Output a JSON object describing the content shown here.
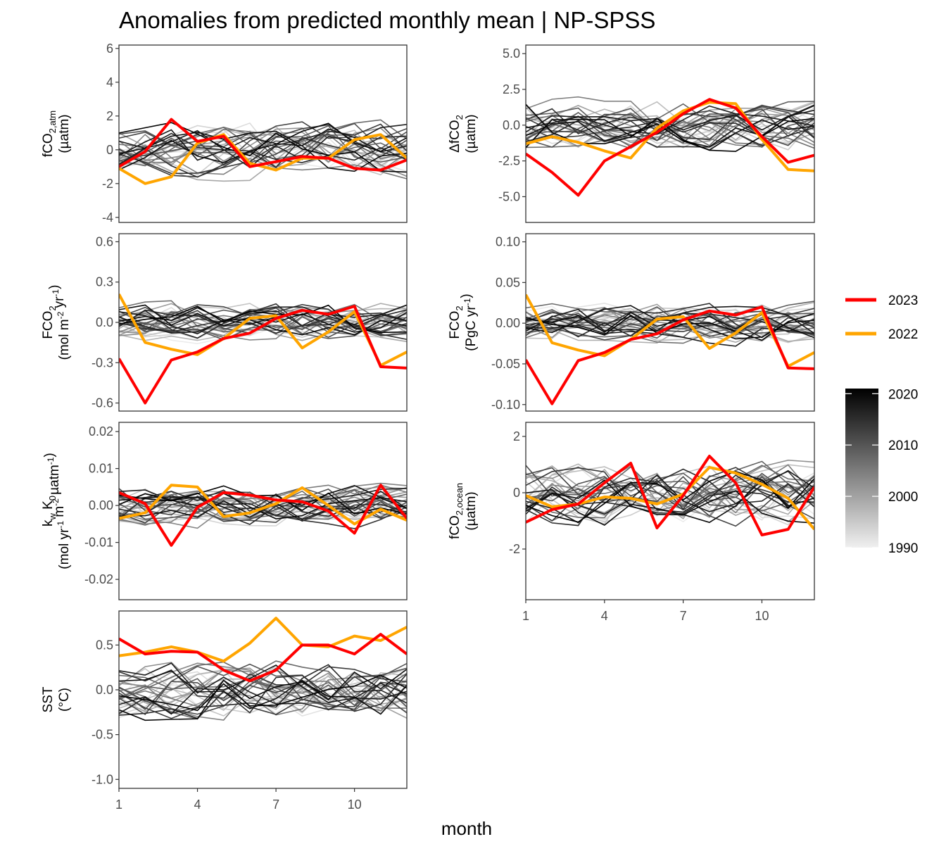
{
  "title": "Anomalies from predicted monthly mean | NP-SPSS",
  "chart_data": {
    "type": "line",
    "xlabel": "month",
    "x": [
      1,
      2,
      3,
      4,
      5,
      6,
      7,
      8,
      9,
      10,
      11,
      12
    ],
    "x_ticks": [
      "1",
      "4",
      "7",
      "10"
    ],
    "legend": {
      "highlight_series": [
        {
          "name": "2023",
          "color": "#ff0000"
        },
        {
          "name": "2022",
          "color": "#ffa500"
        }
      ],
      "year_gradient": {
        "ticks": [
          "2020",
          "2010",
          "2000",
          "1990"
        ],
        "range": [
          1990,
          2021
        ]
      }
    },
    "panels": [
      {
        "id": "fco2-atm",
        "ylabel": {
          "line1_base": "fCO",
          "line1_sub": "2,atm",
          "line2": "(µatm)"
        },
        "ylim": [
          -4.3,
          6.2
        ],
        "yticks": [
          6,
          4,
          2,
          0,
          -2,
          -4
        ],
        "ytick_labels": [
          "6",
          "4",
          "2",
          "0",
          "-2",
          "-4"
        ],
        "series": [
          {
            "name": "2023",
            "values": [
              -1.0,
              -0.1,
              1.8,
              0.5,
              0.8,
              -1.0,
              -0.7,
              -0.4,
              -0.5,
              -1.1,
              -1.2,
              -0.6
            ]
          },
          {
            "name": "2022",
            "values": [
              -1.1,
              -2.0,
              -1.6,
              0.4,
              0.9,
              -0.8,
              -1.2,
              -0.5,
              -0.5,
              0.6,
              0.9,
              -0.5
            ]
          }
        ],
        "background": {
          "seed": 11,
          "amplitude": 2.0
        }
      },
      {
        "id": "delta-fco2",
        "ylabel": {
          "line1_base": "ΔfCO",
          "line1_sub": "2",
          "line2": "(µatm)"
        },
        "ylim": [
          -6.8,
          5.6
        ],
        "yticks": [
          5.0,
          2.5,
          0.0,
          -2.5,
          -5.0
        ],
        "ytick_labels": [
          "5.0",
          "2.5",
          "0.0",
          "-2.5",
          "-5.0"
        ],
        "series": [
          {
            "name": "2023",
            "values": [
              -2.0,
              -3.3,
              -4.9,
              -2.5,
              -1.5,
              -0.5,
              0.8,
              1.8,
              1.2,
              -0.8,
              -2.6,
              -2.1
            ]
          },
          {
            "name": "2022",
            "values": [
              -1.3,
              -0.8,
              -1.2,
              -1.8,
              -2.3,
              -0.2,
              1.0,
              1.6,
              1.5,
              -1.0,
              -3.1,
              -3.2
            ]
          }
        ],
        "background": {
          "seed": 23,
          "amplitude": 2.2
        }
      },
      {
        "id": "fco2-flux-area",
        "ylabel": {
          "line1_base": "FCO",
          "line1_sub": "2",
          "line2": "(mol m-2 yr-1)"
        },
        "ylim": [
          -0.66,
          0.66
        ],
        "yticks": [
          0.6,
          0.3,
          0.0,
          -0.3,
          -0.6
        ],
        "ytick_labels": [
          "0.6",
          "0.3",
          "0.0",
          "-0.3",
          "-0.6"
        ],
        "series": [
          {
            "name": "2023",
            "values": [
              -0.27,
              -0.6,
              -0.28,
              -0.22,
              -0.12,
              -0.08,
              0.03,
              0.09,
              0.06,
              0.12,
              -0.33,
              -0.34
            ]
          },
          {
            "name": "2022",
            "values": [
              0.21,
              -0.15,
              -0.2,
              -0.24,
              -0.12,
              0.03,
              0.05,
              -0.19,
              -0.07,
              0.08,
              -0.32,
              -0.22
            ]
          }
        ],
        "background": {
          "seed": 37,
          "amplitude": 0.18
        }
      },
      {
        "id": "fco2-flux-total",
        "ylabel": {
          "line1_base": "FCO",
          "line1_sub": "2",
          "line2": "(PgC yr-1)"
        },
        "ylim": [
          -0.108,
          0.11
        ],
        "yticks": [
          0.1,
          0.05,
          0.0,
          -0.05,
          -0.1
        ],
        "ytick_labels": [
          "0.10",
          "0.05",
          "0.00",
          "-0.05",
          "-0.10"
        ],
        "series": [
          {
            "name": "2023",
            "values": [
              -0.045,
              -0.099,
              -0.046,
              -0.036,
              -0.02,
              -0.013,
              0.004,
              0.015,
              0.01,
              0.02,
              -0.055,
              -0.056
            ]
          },
          {
            "name": "2022",
            "values": [
              0.035,
              -0.024,
              -0.033,
              -0.04,
              -0.02,
              0.005,
              0.008,
              -0.031,
              -0.012,
              0.013,
              -0.053,
              -0.036
            ]
          }
        ],
        "background": {
          "seed": 41,
          "amplitude": 0.03
        }
      },
      {
        "id": "kw-k0",
        "ylabel": {
          "line1_base": "k",
          "line1_sub": "w",
          "line1_mid": " K",
          "line1_sub2": "0",
          "line2": "(mol yr-1 m-2 µatm-1)"
        },
        "ylim": [
          -0.0255,
          0.0225
        ],
        "yticks": [
          0.02,
          0.01,
          0.0,
          -0.01,
          -0.02
        ],
        "ytick_labels": [
          "0.02",
          "0.01",
          "0.00",
          "-0.01",
          "-0.02"
        ],
        "series": [
          {
            "name": "2023",
            "values": [
              0.0035,
              0.0005,
              -0.0108,
              -0.0005,
              0.0035,
              0.0028,
              0.0015,
              0.001,
              -0.0015,
              -0.0075,
              0.0055,
              -0.0035
            ]
          },
          {
            "name": "2022",
            "values": [
              -0.0035,
              -0.002,
              0.0055,
              0.005,
              -0.003,
              -0.002,
              0.0005,
              0.0048,
              0.0,
              -0.005,
              -0.001,
              -0.004
            ]
          }
        ],
        "background": {
          "seed": 53,
          "amplitude": 0.007
        }
      },
      {
        "id": "fco2-ocean",
        "ylabel": {
          "line1_base": "fCO",
          "line1_sub": "2,ocean",
          "line2": "(µatm)"
        },
        "ylim": [
          -3.8,
          2.5
        ],
        "yticks": [
          2,
          0,
          -2
        ],
        "ytick_labels": [
          "2",
          "0",
          "-2"
        ],
        "series": [
          {
            "name": "2023",
            "values": [
              -1.05,
              -0.6,
              -0.4,
              0.35,
              1.05,
              -1.25,
              -0.1,
              1.3,
              0.35,
              -1.5,
              -1.3,
              0.2
            ]
          },
          {
            "name": "2022",
            "values": [
              -0.1,
              -0.5,
              -0.4,
              -0.15,
              -0.2,
              -0.4,
              -0.05,
              0.9,
              0.7,
              0.3,
              -0.2,
              -1.3
            ]
          }
        ],
        "background": {
          "seed": 67,
          "amplitude": 1.4
        }
      },
      {
        "id": "sst",
        "ylabel": {
          "line1_base": "SST",
          "line1_sub": "",
          "line2": "(°C)"
        },
        "ylim": [
          -1.1,
          0.88
        ],
        "yticks": [
          0.5,
          0.0,
          -0.5,
          -1.0
        ],
        "ytick_labels": [
          "0.5",
          "0.0",
          "-0.5",
          "-1.0"
        ],
        "series": [
          {
            "name": "2023",
            "values": [
              0.57,
              0.4,
              0.43,
              0.42,
              0.22,
              0.1,
              0.22,
              0.5,
              0.5,
              0.4,
              0.62,
              0.4
            ]
          },
          {
            "name": "2022",
            "values": [
              0.38,
              0.42,
              0.48,
              0.42,
              0.32,
              0.52,
              0.8,
              0.5,
              0.48,
              0.6,
              0.55,
              0.7
            ]
          }
        ],
        "background": {
          "seed": 79,
          "amplitude": 0.42
        }
      }
    ]
  }
}
